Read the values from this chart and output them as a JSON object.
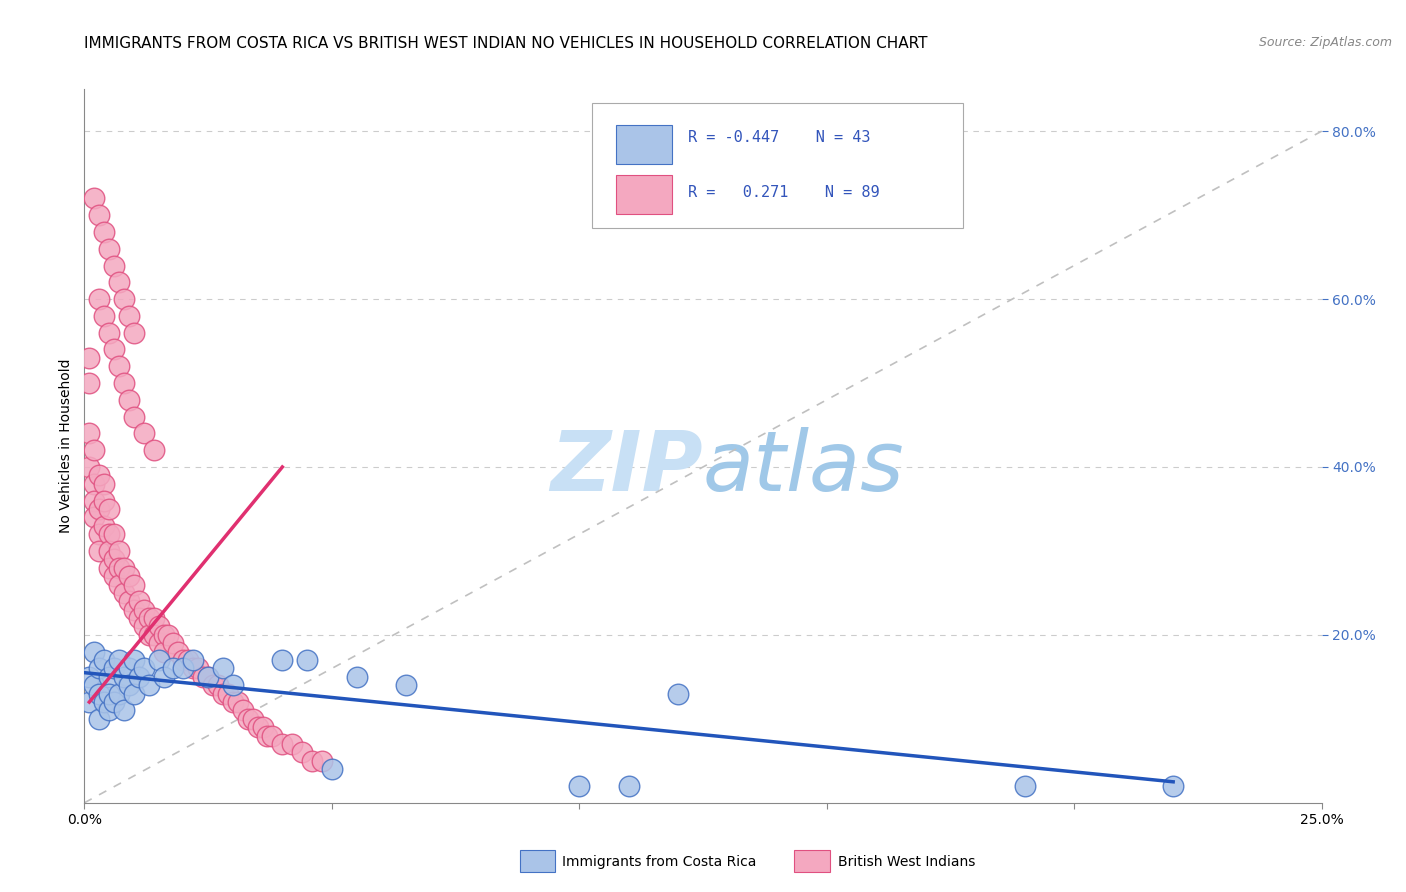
{
  "title": "IMMIGRANTS FROM COSTA RICA VS BRITISH WEST INDIAN NO VEHICLES IN HOUSEHOLD CORRELATION CHART",
  "source": "Source: ZipAtlas.com",
  "ylabel": "No Vehicles in Household",
  "xlim": [
    0.0,
    0.25
  ],
  "ylim": [
    0.0,
    0.85
  ],
  "ytick_vals": [
    0.2,
    0.4,
    0.6,
    0.8
  ],
  "legend_blue_r": "-0.447",
  "legend_blue_n": "43",
  "legend_pink_r": "0.271",
  "legend_pink_n": "89",
  "legend_label_blue": "Immigrants from Costa Rica",
  "legend_label_pink": "British West Indians",
  "blue_scatter_color": "#aac4e8",
  "pink_scatter_color": "#f4a8c0",
  "blue_edge_color": "#4472c4",
  "pink_edge_color": "#e05080",
  "blue_line_color": "#2255bb",
  "pink_line_color": "#e03070",
  "diag_line_color": "#c0c0c0",
  "grid_color": "#cccccc",
  "watermark_zip_color": "#c8e0f5",
  "watermark_atlas_color": "#a0c8e8",
  "title_fontsize": 11,
  "tick_fontsize": 10,
  "axis_label_fontsize": 10,
  "scatter_blue_x": [
    0.001,
    0.001,
    0.002,
    0.002,
    0.003,
    0.003,
    0.003,
    0.004,
    0.004,
    0.005,
    0.005,
    0.005,
    0.006,
    0.006,
    0.007,
    0.007,
    0.008,
    0.008,
    0.009,
    0.009,
    0.01,
    0.01,
    0.011,
    0.012,
    0.013,
    0.015,
    0.016,
    0.018,
    0.02,
    0.022,
    0.025,
    0.028,
    0.03,
    0.04,
    0.045,
    0.05,
    0.055,
    0.065,
    0.1,
    0.11,
    0.12,
    0.19,
    0.22
  ],
  "scatter_blue_y": [
    0.15,
    0.12,
    0.18,
    0.14,
    0.16,
    0.1,
    0.13,
    0.17,
    0.12,
    0.15,
    0.11,
    0.13,
    0.16,
    0.12,
    0.17,
    0.13,
    0.15,
    0.11,
    0.16,
    0.14,
    0.17,
    0.13,
    0.15,
    0.16,
    0.14,
    0.17,
    0.15,
    0.16,
    0.16,
    0.17,
    0.15,
    0.16,
    0.14,
    0.17,
    0.17,
    0.04,
    0.15,
    0.14,
    0.02,
    0.02,
    0.13,
    0.02,
    0.02
  ],
  "scatter_pink_x": [
    0.001,
    0.001,
    0.001,
    0.001,
    0.002,
    0.002,
    0.002,
    0.002,
    0.003,
    0.003,
    0.003,
    0.003,
    0.004,
    0.004,
    0.004,
    0.005,
    0.005,
    0.005,
    0.005,
    0.006,
    0.006,
    0.006,
    0.007,
    0.007,
    0.007,
    0.008,
    0.008,
    0.009,
    0.009,
    0.01,
    0.01,
    0.011,
    0.011,
    0.012,
    0.012,
    0.013,
    0.013,
    0.014,
    0.014,
    0.015,
    0.015,
    0.016,
    0.016,
    0.017,
    0.018,
    0.019,
    0.02,
    0.021,
    0.022,
    0.023,
    0.024,
    0.025,
    0.026,
    0.027,
    0.028,
    0.029,
    0.03,
    0.031,
    0.032,
    0.033,
    0.034,
    0.035,
    0.036,
    0.037,
    0.038,
    0.04,
    0.042,
    0.044,
    0.046,
    0.048,
    0.003,
    0.004,
    0.005,
    0.006,
    0.007,
    0.008,
    0.009,
    0.01,
    0.012,
    0.014,
    0.002,
    0.003,
    0.004,
    0.005,
    0.006,
    0.007,
    0.008,
    0.009,
    0.01
  ],
  "scatter_pink_y": [
    0.53,
    0.5,
    0.44,
    0.4,
    0.42,
    0.38,
    0.36,
    0.34,
    0.39,
    0.35,
    0.32,
    0.3,
    0.38,
    0.36,
    0.33,
    0.35,
    0.32,
    0.3,
    0.28,
    0.32,
    0.29,
    0.27,
    0.3,
    0.28,
    0.26,
    0.28,
    0.25,
    0.27,
    0.24,
    0.26,
    0.23,
    0.24,
    0.22,
    0.23,
    0.21,
    0.22,
    0.2,
    0.22,
    0.2,
    0.21,
    0.19,
    0.2,
    0.18,
    0.2,
    0.19,
    0.18,
    0.17,
    0.17,
    0.16,
    0.16,
    0.15,
    0.15,
    0.14,
    0.14,
    0.13,
    0.13,
    0.12,
    0.12,
    0.11,
    0.1,
    0.1,
    0.09,
    0.09,
    0.08,
    0.08,
    0.07,
    0.07,
    0.06,
    0.05,
    0.05,
    0.6,
    0.58,
    0.56,
    0.54,
    0.52,
    0.5,
    0.48,
    0.46,
    0.44,
    0.42,
    0.72,
    0.7,
    0.68,
    0.66,
    0.64,
    0.62,
    0.6,
    0.58,
    0.56
  ],
  "blue_line_x": [
    0.0,
    0.22
  ],
  "blue_line_y": [
    0.155,
    0.025
  ],
  "pink_line_x": [
    0.001,
    0.04
  ],
  "pink_line_y": [
    0.12,
    0.4
  ]
}
